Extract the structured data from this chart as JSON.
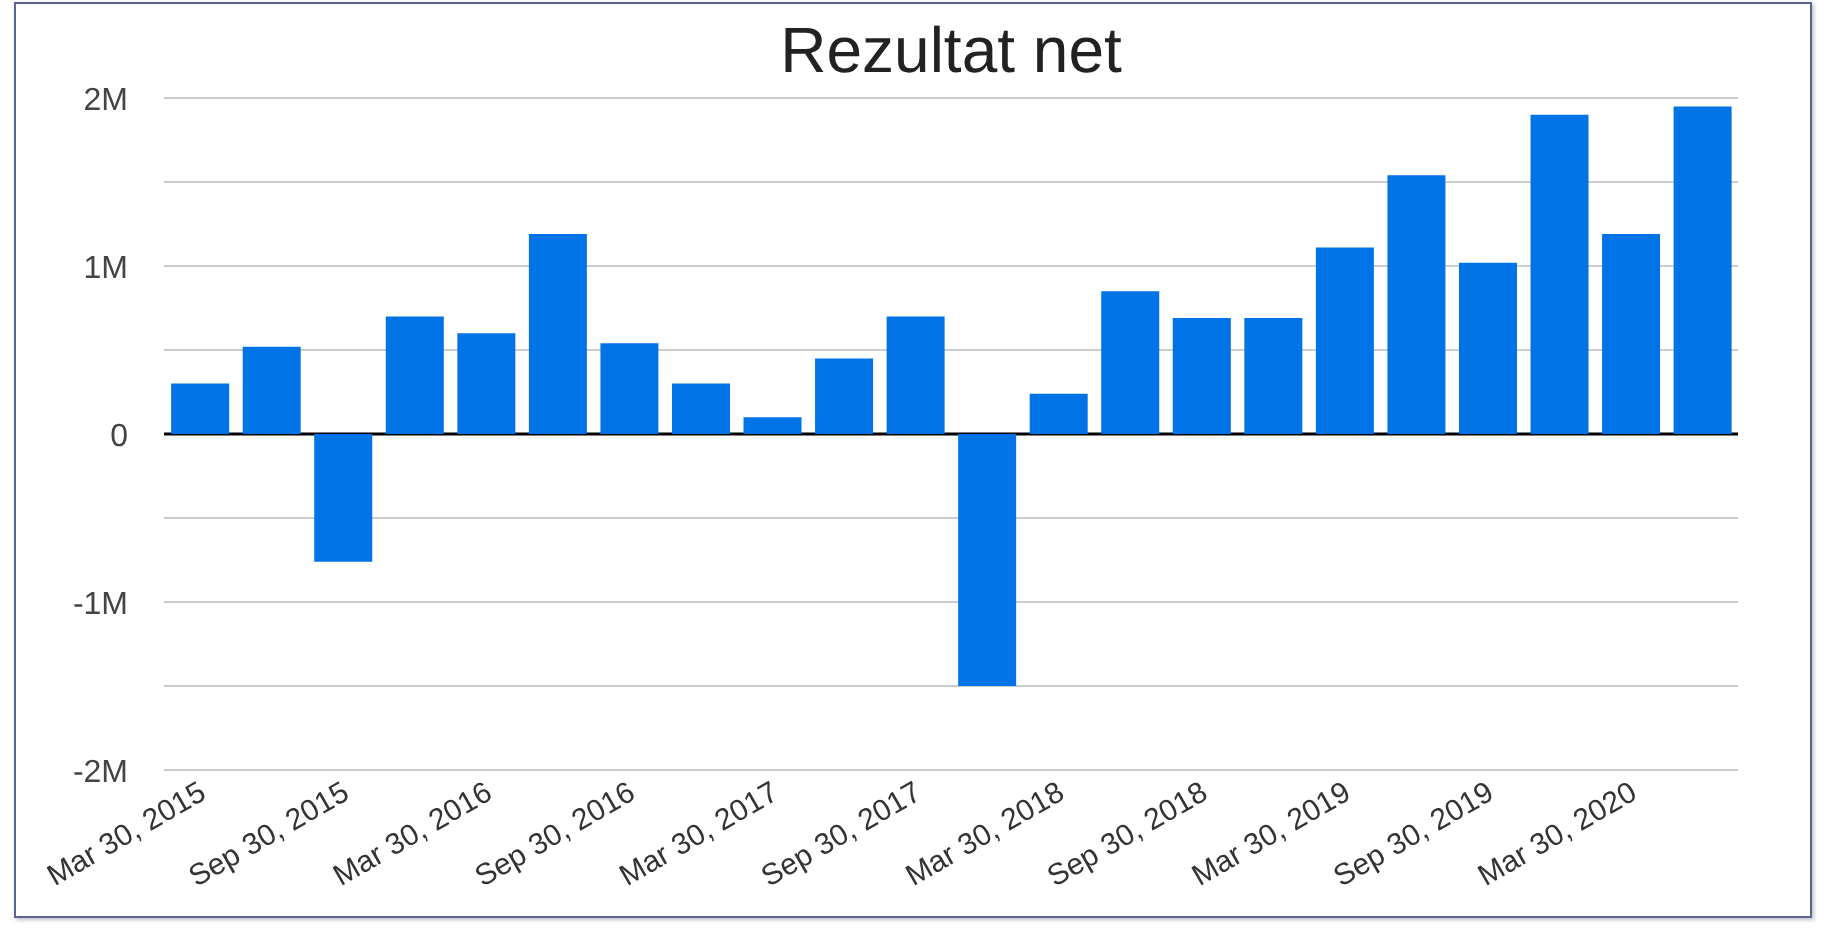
{
  "chart_data": {
    "type": "bar",
    "title": "Rezultat net",
    "categories": [
      "Mar 30, 2015",
      null,
      "Sep 30, 2015",
      null,
      "Mar 30, 2016",
      null,
      "Sep 30, 2016",
      null,
      "Mar 30, 2017",
      null,
      "Sep 30, 2017",
      null,
      "Mar 30, 2018",
      null,
      "Sep 30, 2018",
      null,
      "Mar 30, 2019",
      null,
      "Sep 30, 2019",
      null,
      "Mar 30, 2020",
      null
    ],
    "values": [
      300000,
      520000,
      -760000,
      700000,
      600000,
      1190000,
      540000,
      300000,
      100000,
      450000,
      700000,
      -1500000,
      240000,
      850000,
      690000,
      690000,
      1110000,
      1540000,
      1020000,
      1900000,
      1190000,
      1950000
    ],
    "color": "#0073e6",
    "ylim": [
      -2000000,
      2000000
    ],
    "yticks": [
      {
        "value": -2000000,
        "label": "-2M"
      },
      {
        "value": -1500000,
        "label": null
      },
      {
        "value": -1000000,
        "label": "-1M"
      },
      {
        "value": -500000,
        "label": null
      },
      0,
      {
        "value": 500000,
        "label": null
      },
      {
        "value": 1000000,
        "label": "1M"
      },
      {
        "value": 1500000,
        "label": null
      },
      {
        "value": 2000000,
        "label": "2M"
      }
    ],
    "grid": "y"
  }
}
